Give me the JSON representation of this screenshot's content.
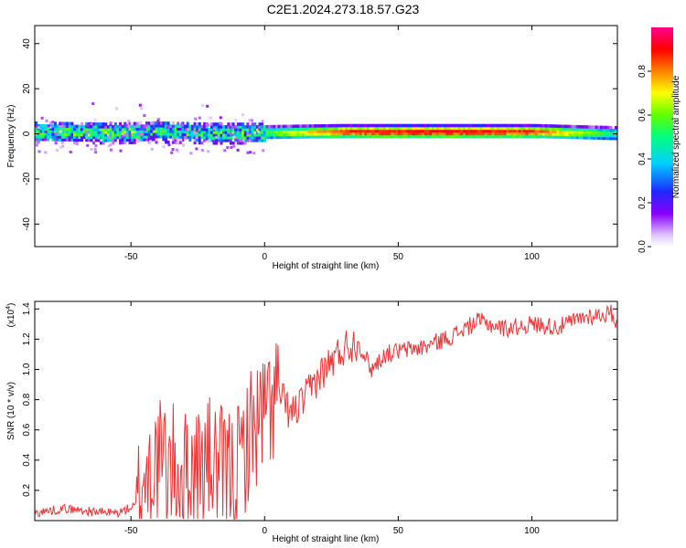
{
  "title": "C2E1.2024.273.18.57.G23",
  "colorbar": {
    "label": "Normalized spectral amplitude",
    "ticks": [
      "0.0",
      "0.2",
      "0.4",
      "0.6",
      "0.8"
    ]
  },
  "chart_data": [
    {
      "type": "heatmap",
      "xlabel": "Height of straight line (km)",
      "ylabel": "Frequency (Hz)",
      "xlim": [
        -86,
        132
      ],
      "ylim": [
        -50,
        48
      ],
      "xticks": [
        -50,
        0,
        50,
        100
      ],
      "yticks": [
        -40,
        -20,
        0,
        20,
        40
      ],
      "xtick_labels": [
        "-50",
        "0",
        "50",
        "100"
      ],
      "ytick_labels": [
        "-40",
        "-20",
        "0",
        "20",
        "40"
      ],
      "colorscale": [
        "#ffffff",
        "#c8a0ff",
        "#6a00ff",
        "#1030ff",
        "#00ffff",
        "#00ff40",
        "#ffff00",
        "#ff8000",
        "#ff0000",
        "#ff0080"
      ],
      "band": {
        "x": [
          -86,
          -60,
          -40,
          -20,
          0,
          30,
          60,
          100,
          132
        ],
        "center": [
          1,
          0.5,
          1,
          0.5,
          0.5,
          1,
          1,
          1,
          0
        ],
        "amplitude": [
          0.45,
          0.5,
          0.45,
          0.4,
          0.55,
          0.85,
          0.9,
          0.85,
          0.45
        ]
      }
    },
    {
      "type": "line",
      "xlabel": "Height of straight line (km)",
      "ylabel": "SNR (10 * v/v)",
      "scale_label": "(x10",
      "scale_exp": "4",
      "xlim": [
        -86,
        132
      ],
      "ylim": [
        0,
        1.45
      ],
      "xticks": [
        -50,
        0,
        50,
        100
      ],
      "yticks": [
        0.2,
        0.4,
        0.6,
        0.8,
        1.0,
        1.2,
        1.4
      ],
      "xtick_labels": [
        "-50",
        "0",
        "50",
        "100"
      ],
      "ytick_labels": [
        "0.2",
        "0.4",
        "0.6",
        "0.8",
        "1.0",
        "1.2",
        "1.4"
      ],
      "color": "#ee3333",
      "series": [
        {
          "x": [
            -86,
            -75,
            -65,
            -55,
            -48,
            -45,
            -40,
            -35,
            -30,
            -25,
            -20,
            -15,
            -10,
            -5,
            0,
            5,
            10,
            15,
            20,
            25,
            30,
            35,
            40,
            45,
            50,
            60,
            70,
            80,
            90,
            100,
            110,
            120,
            130,
            132
          ],
          "y": [
            0.05,
            0.08,
            0.06,
            0.05,
            0.1,
            0.3,
            0.4,
            0.35,
            0.3,
            0.35,
            0.4,
            0.3,
            0.35,
            0.6,
            0.7,
            0.85,
            0.7,
            0.8,
            0.95,
            1.05,
            1.15,
            1.18,
            1.0,
            1.1,
            1.12,
            1.15,
            1.22,
            1.32,
            1.27,
            1.3,
            1.28,
            1.35,
            1.37,
            1.3
          ]
        }
      ]
    }
  ]
}
